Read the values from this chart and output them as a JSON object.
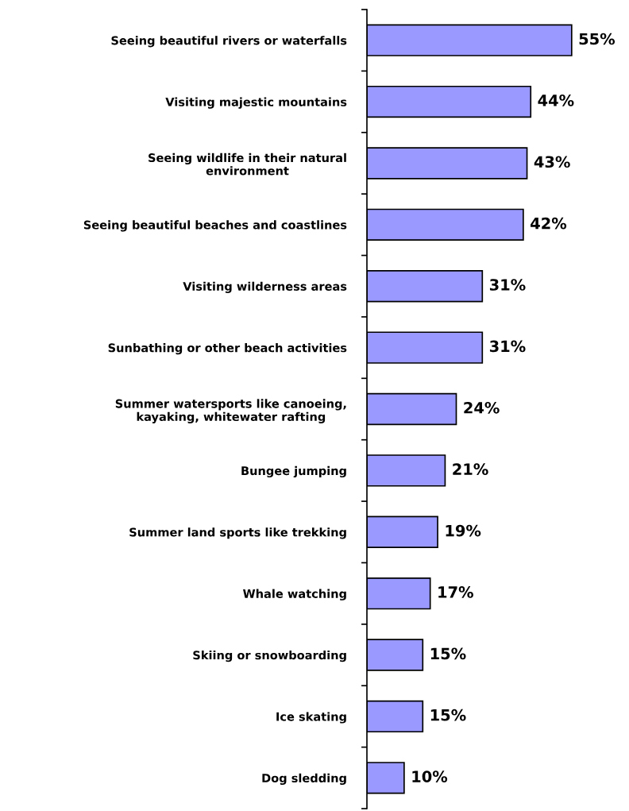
{
  "chart_data": {
    "type": "bar",
    "orientation": "horizontal",
    "categories": [
      "Seeing beautiful rivers or waterfalls",
      "Visiting majestic mountains",
      "Seeing wildlife in their natural\nenvironment",
      "Seeing beautiful beaches and coastlines",
      "Visiting wilderness areas",
      "Sunbathing or other beach activities",
      "Summer watersports like canoeing,\nkayaking, whitewater rafting",
      "Bungee jumping",
      "Summer land sports like trekking",
      "Whale watching",
      "Skiing or snowboarding",
      "Ice skating",
      "Dog sledding"
    ],
    "values": [
      55,
      44,
      43,
      42,
      31,
      31,
      24,
      21,
      19,
      17,
      15,
      15,
      10
    ],
    "value_labels": [
      "55%",
      "44%",
      "43%",
      "42%",
      "31%",
      "31%",
      "24%",
      "21%",
      "19%",
      "17%",
      "15%",
      "15%",
      "10%"
    ],
    "color": "#9999ff",
    "grid": false,
    "legend": false
  }
}
